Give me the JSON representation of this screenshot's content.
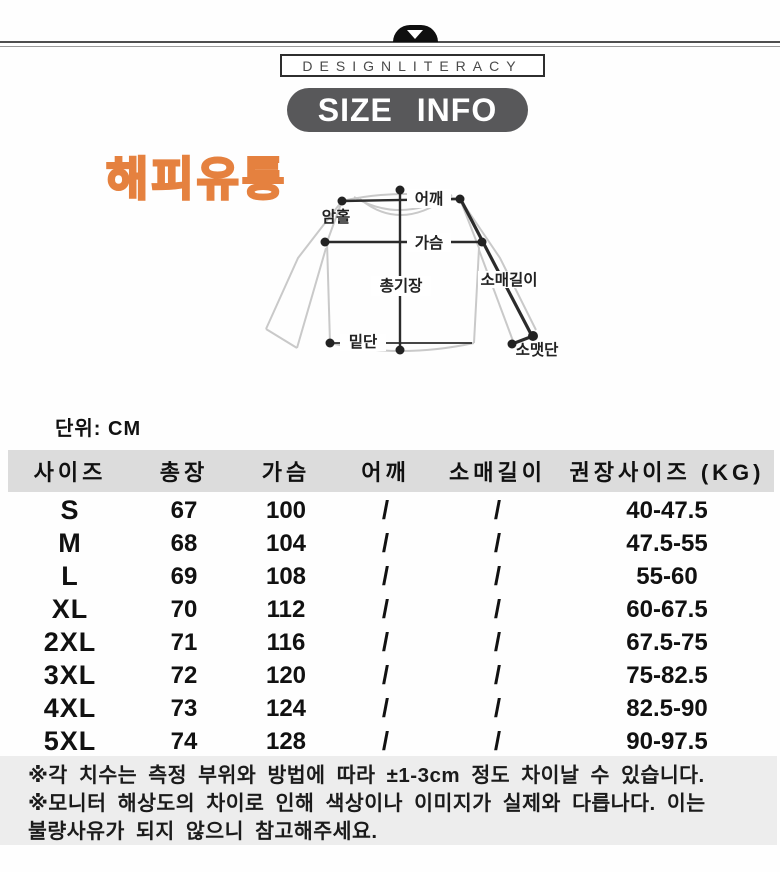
{
  "header": {
    "brand_label": "DESIGNLITERACY",
    "title": "SIZE INFO",
    "store_name": "해피유통"
  },
  "diagram": {
    "labels": {
      "shoulder": "어깨",
      "armhole": "암홀",
      "chest": "가슴",
      "total_length": "총기장",
      "sleeve_length": "소매길이",
      "hem": "밑단",
      "cuff": "소맷단"
    }
  },
  "unit_label": "단위: CM",
  "table": {
    "headers": [
      "사이즈",
      "총장",
      "가슴",
      "어깨",
      "소매길이",
      "권장사이즈 (KG)"
    ],
    "rows": [
      [
        "S",
        "67",
        "100",
        "/",
        "/",
        "40-47.5"
      ],
      [
        "M",
        "68",
        "104",
        "/",
        "/",
        "47.5-55"
      ],
      [
        "L",
        "69",
        "108",
        "/",
        "/",
        "55-60"
      ],
      [
        "XL",
        "70",
        "112",
        "/",
        "/",
        "60-67.5"
      ],
      [
        "2XL",
        "71",
        "116",
        "/",
        "/",
        "67.5-75"
      ],
      [
        "3XL",
        "72",
        "120",
        "/",
        "/",
        "75-82.5"
      ],
      [
        "4XL",
        "73",
        "124",
        "/",
        "/",
        "82.5-90"
      ],
      [
        "5XL",
        "74",
        "128",
        "/",
        "/",
        "90-97.5"
      ]
    ]
  },
  "notes": {
    "lines": [
      "※각 치수는 측정 부위와 방법에 따라 ±1-3cm 정도 차이날 수 있습니다.",
      "※모니터 해상도의 차이로 인해 색상이나 이미지가 실제와 다릅나다. 이는",
      "불량사유가 되지 않으니 참고해주세요."
    ]
  },
  "colors": {
    "accent_orange": "#e5813f",
    "pill_gray": "#58585a",
    "table_header_gray": "#dcdcdc",
    "notes_bg": "#ededed"
  }
}
